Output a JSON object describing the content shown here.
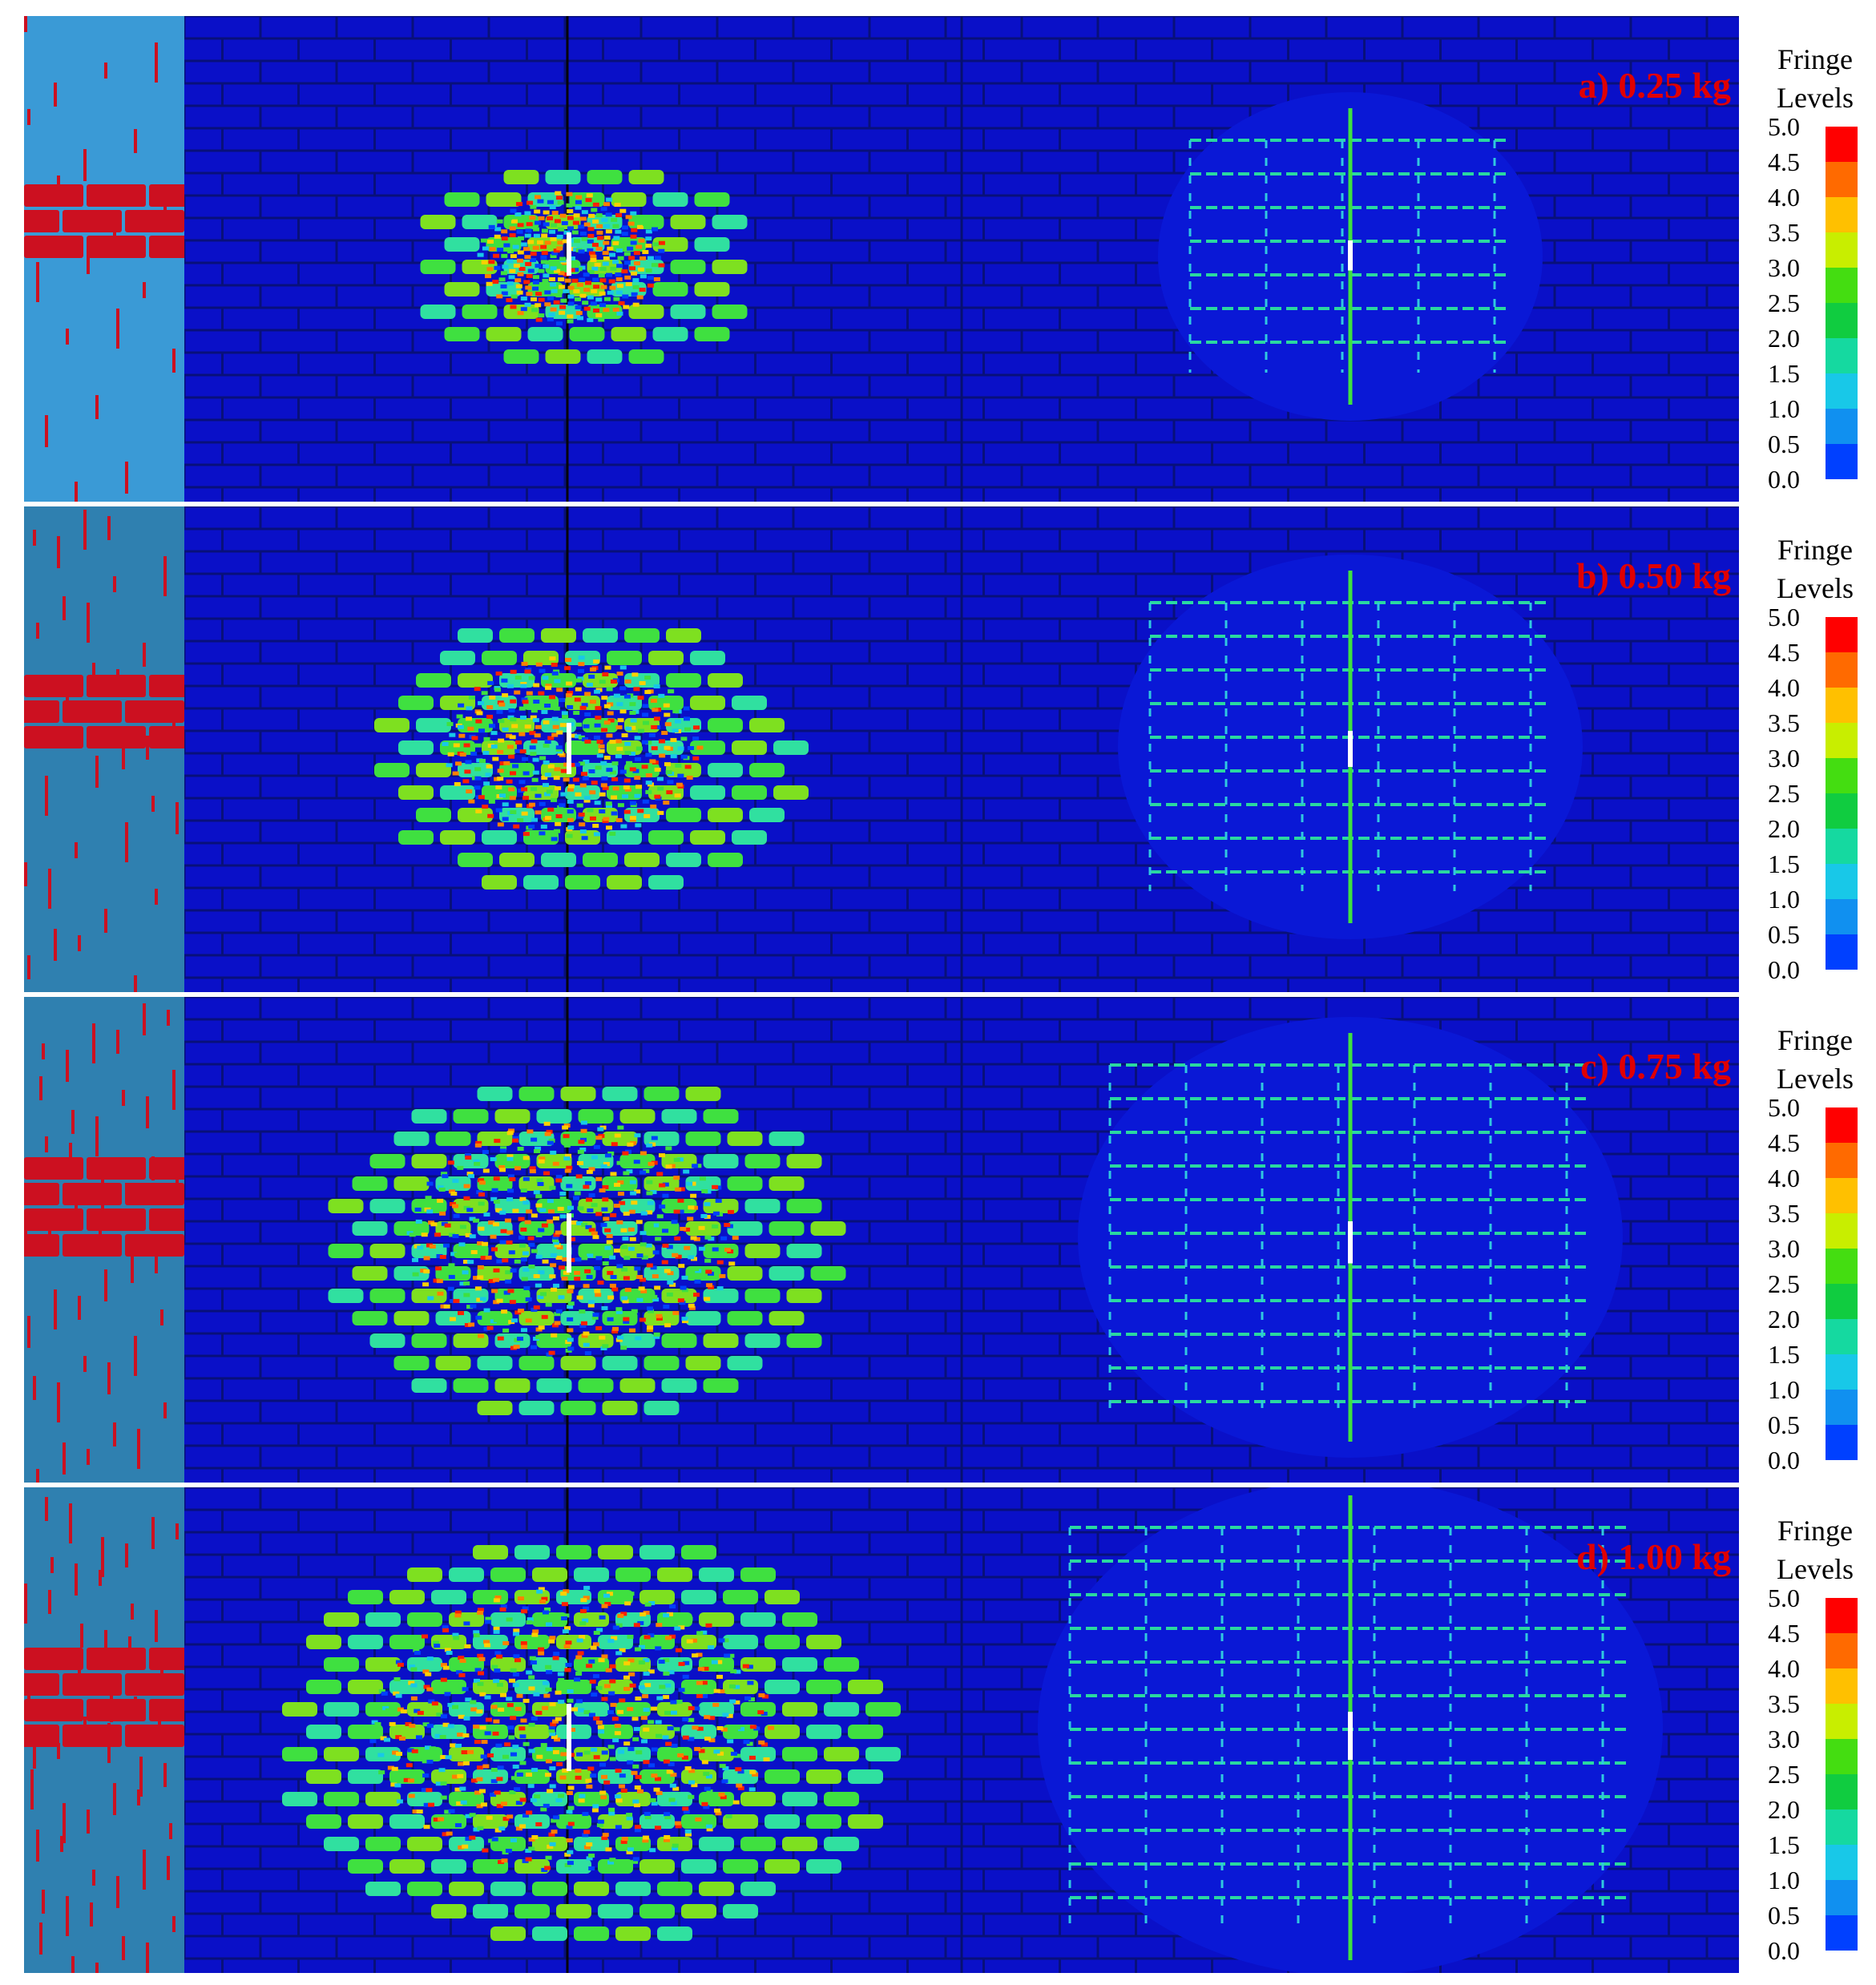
{
  "legend": {
    "title_line1": "Fringe",
    "title_line2": "Levels",
    "ticks": [
      "5.0",
      "4.5",
      "4.0",
      "3.5",
      "3.0",
      "2.5",
      "2.0",
      "1.5",
      "1.0",
      "0.5",
      "0.0"
    ],
    "colors": [
      "#ff0000",
      "#ff6a00",
      "#ffc000",
      "#c8ee00",
      "#44dd11",
      "#10cc40",
      "#15d9a0",
      "#18c8e8",
      "#1090f0",
      "#0040ff"
    ]
  },
  "panels": [
    {
      "id": "a",
      "label": "a) 0.25 kg",
      "damage": 0.25,
      "side_color": "#3a9ad6"
    },
    {
      "id": "b",
      "label": "b) 0.50 kg",
      "damage": 0.5,
      "side_color": "#2f80b0"
    },
    {
      "id": "c",
      "label": "c) 0.75 kg",
      "damage": 0.75,
      "side_color": "#2f80b0"
    },
    {
      "id": "d",
      "label": "d) 1.00 kg",
      "damage": 1.0,
      "side_color": "#2f80b0"
    }
  ]
}
